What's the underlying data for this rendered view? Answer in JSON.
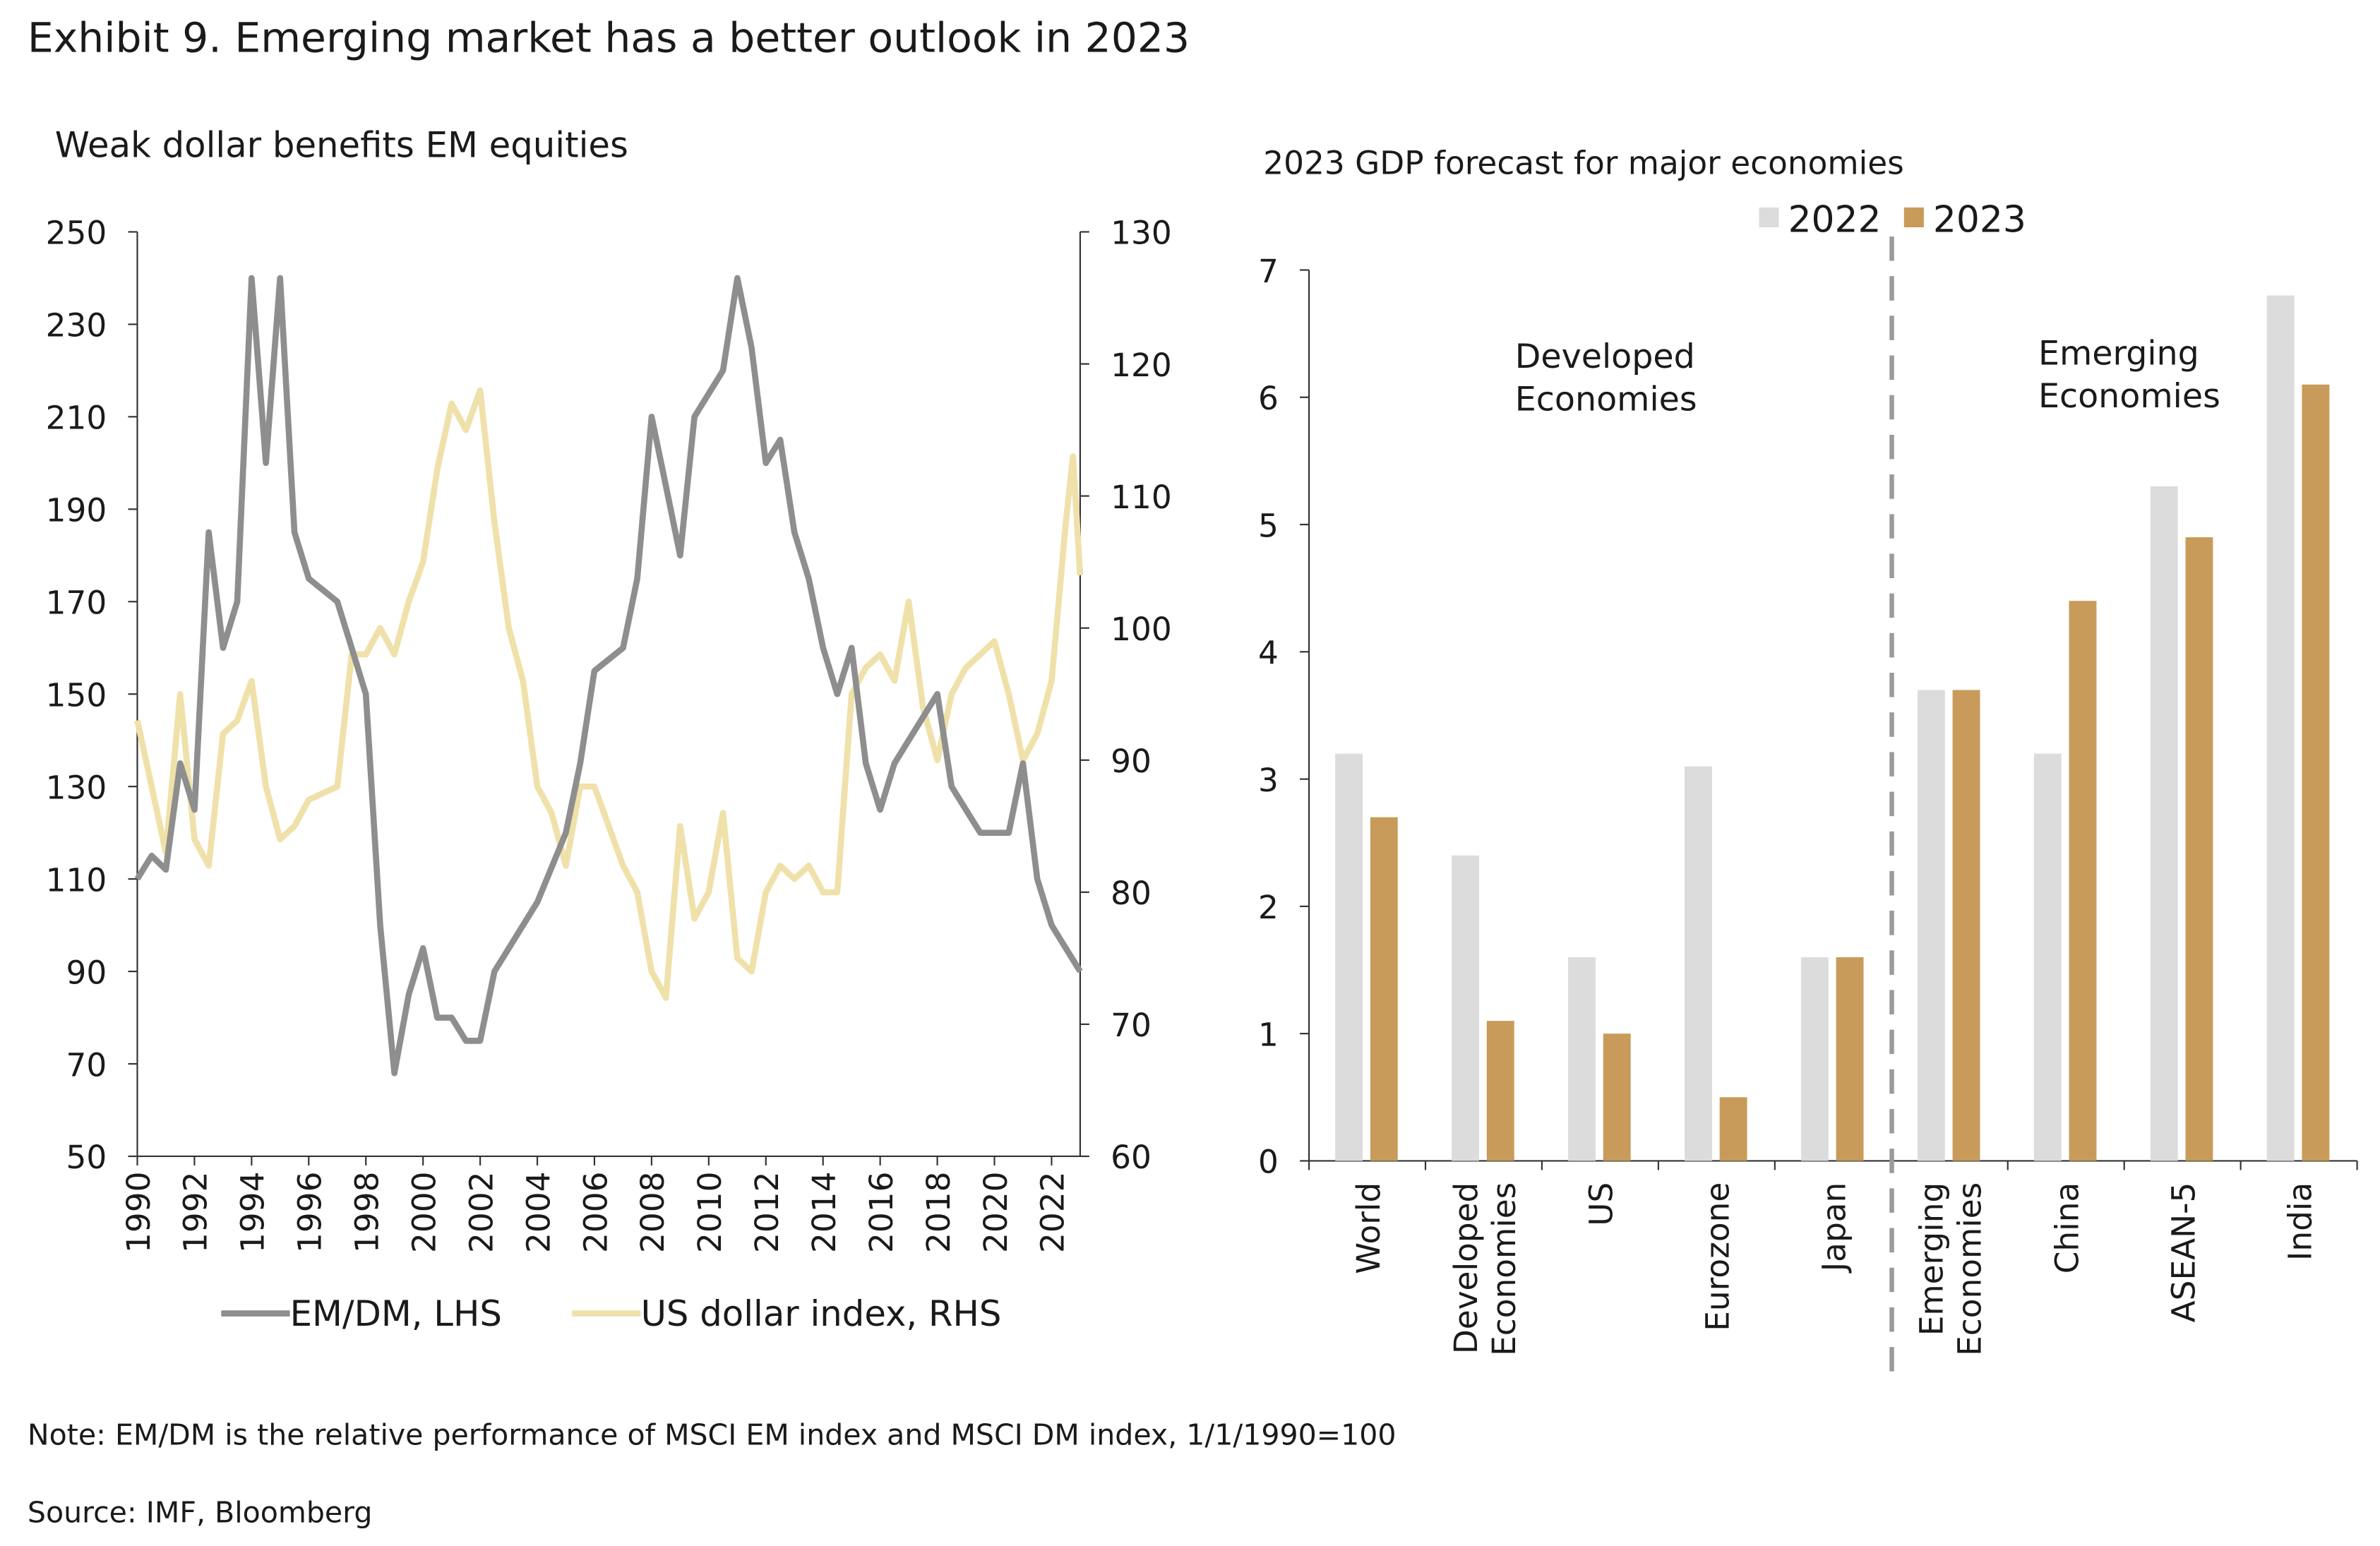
{
  "title": "Exhibit 9. Emerging market has a better outlook in 2023",
  "note": "Note: EM/DM is the relative performance of MSCI EM index and MSCI DM index, 1/1/1990=100",
  "source": "Source: IMF, Bloomberg",
  "colors": {
    "emdm": "#8e8e8e",
    "usd": "#efe1a9",
    "bar2022": "#dcdcdc",
    "bar2023": "#c89b5a",
    "divider": "#9a9a9a"
  },
  "chart_data": [
    {
      "type": "line",
      "title": "Weak dollar benefits EM equities",
      "xlim": [
        1990,
        2023
      ],
      "xticks": [
        "1990",
        "1992",
        "1994",
        "1996",
        "1998",
        "2000",
        "2002",
        "2004",
        "2006",
        "2008",
        "2010",
        "2012",
        "2014",
        "2016",
        "2018",
        "2020",
        "2022"
      ],
      "ylim_left": [
        50,
        250
      ],
      "yticks_left": [
        "50",
        "70",
        "90",
        "110",
        "130",
        "150",
        "170",
        "190",
        "210",
        "230",
        "250"
      ],
      "ylim_right": [
        60,
        130
      ],
      "yticks_right": [
        "60",
        "70",
        "80",
        "90",
        "100",
        "110",
        "120",
        "130"
      ],
      "legend": [
        "EM/DM, LHS",
        "US dollar index, RHS"
      ],
      "legend_position": "bottom",
      "series": [
        {
          "name": "EM/DM, LHS",
          "axis": "left",
          "x": [
            1990,
            1990.5,
            1991,
            1991.5,
            1992,
            1992.5,
            1993,
            1993.5,
            1994,
            1994.5,
            1995,
            1995.5,
            1996,
            1997,
            1997.5,
            1998,
            1998.5,
            1999,
            1999.5,
            2000,
            2000.5,
            2001,
            2001.5,
            2002,
            2002.5,
            2003,
            2004,
            2005,
            2005.5,
            2006,
            2007,
            2007.5,
            2008,
            2008.5,
            2009,
            2009.5,
            2010,
            2010.5,
            2011,
            2011.5,
            2012,
            2012.5,
            2013,
            2013.5,
            2014,
            2014.5,
            2015,
            2015.5,
            2016,
            2016.5,
            2017,
            2018,
            2018.5,
            2019,
            2019.5,
            2020,
            2020.5,
            2021,
            2021.5,
            2022,
            2022.5,
            2023
          ],
          "y": [
            110,
            115,
            112,
            135,
            125,
            185,
            160,
            170,
            240,
            200,
            240,
            185,
            175,
            170,
            160,
            150,
            100,
            68,
            85,
            95,
            80,
            80,
            75,
            75,
            90,
            95,
            105,
            120,
            135,
            155,
            160,
            175,
            210,
            195,
            180,
            210,
            215,
            220,
            240,
            225,
            200,
            205,
            185,
            175,
            160,
            150,
            160,
            135,
            125,
            135,
            140,
            150,
            130,
            125,
            120,
            120,
            120,
            135,
            110,
            100,
            95,
            90
          ]
        },
        {
          "name": "US dollar index, RHS",
          "axis": "right",
          "x": [
            1990,
            1990.5,
            1991,
            1991.5,
            1992,
            1992.5,
            1993,
            1993.5,
            1994,
            1994.5,
            1995,
            1995.5,
            1996,
            1997,
            1997.5,
            1998,
            1998.5,
            1999,
            1999.5,
            2000,
            2000.5,
            2001,
            2001.5,
            2002,
            2002.5,
            2003,
            2003.5,
            2004,
            2004.5,
            2005,
            2005.5,
            2006,
            2006.5,
            2007,
            2007.5,
            2008,
            2008.5,
            2009,
            2009.5,
            2010,
            2010.5,
            2011,
            2011.5,
            2012,
            2012.5,
            2013,
            2013.5,
            2014,
            2014.5,
            2015,
            2015.5,
            2016,
            2016.5,
            2017,
            2017.5,
            2018,
            2018.5,
            2019,
            2019.5,
            2020,
            2020.5,
            2021,
            2021.5,
            2022,
            2022.5,
            2022.75,
            2023
          ],
          "y": [
            93,
            88,
            83,
            95,
            84,
            82,
            92,
            93,
            96,
            88,
            84,
            85,
            87,
            88,
            98,
            98,
            100,
            98,
            102,
            105,
            112,
            117,
            115,
            118,
            108,
            100,
            96,
            88,
            86,
            82,
            88,
            88,
            85,
            82,
            80,
            74,
            72,
            85,
            78,
            80,
            86,
            75,
            74,
            80,
            82,
            81,
            82,
            80,
            80,
            95,
            97,
            98,
            96,
            102,
            94,
            90,
            95,
            97,
            98,
            99,
            95,
            90,
            92,
            96,
            108,
            113,
            104
          ]
        }
      ]
    },
    {
      "type": "bar",
      "title": "2023 GDP forecast for major economies",
      "categories": [
        "World",
        "Developed Economies",
        "US",
        "Eurozone",
        "Japan",
        "Emerging Economies",
        "China",
        "ASEAN-5",
        "India"
      ],
      "ylim": [
        0,
        7
      ],
      "yticks": [
        "0",
        "1",
        "2",
        "3",
        "4",
        "5",
        "6",
        "7"
      ],
      "legend": [
        "2022",
        "2023"
      ],
      "legend_position": "top-right",
      "series": [
        {
          "name": "2022",
          "values": [
            3.2,
            2.4,
            1.6,
            3.1,
            1.6,
            3.7,
            3.2,
            5.3,
            6.8
          ]
        },
        {
          "name": "2023",
          "values": [
            2.7,
            1.1,
            1.0,
            0.5,
            1.6,
            3.7,
            4.4,
            4.9,
            6.1
          ]
        }
      ],
      "annotations": [
        "Developed Economies",
        "Emerging Economies"
      ]
    }
  ]
}
